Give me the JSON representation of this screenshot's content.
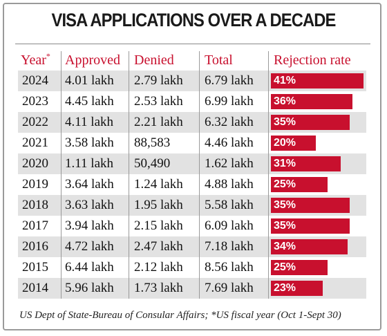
{
  "title": "VISA APPLICATIONS OVER A DECADE",
  "headers": {
    "year": "Year",
    "year_mark": "*",
    "approved": "Approved",
    "denied": "Denied",
    "total": "Total",
    "rate": "Rejection rate"
  },
  "source": "US Dept of State-Bureau of Consular Affairs; *US fiscal year (Oct 1-Sept 30)",
  "colors": {
    "accent": "#c8102e",
    "stripe": "#e2e2e2"
  },
  "chart_data": {
    "type": "table",
    "title": "VISA APPLICATIONS OVER A DECADE",
    "columns": [
      "Year*",
      "Approved",
      "Denied",
      "Total",
      "Rejection rate"
    ],
    "rows": [
      {
        "year": "2024",
        "approved": "4.01 lakh",
        "denied": "2.79 lakh",
        "total": "6.79 lakh",
        "rate": 41,
        "rate_label": "41%"
      },
      {
        "year": "2023",
        "approved": "4.45 lakh",
        "denied": "2.53 lakh",
        "total": "6.99 lakh",
        "rate": 36,
        "rate_label": "36%"
      },
      {
        "year": "2022",
        "approved": "4.11 lakh",
        "denied": "2.21 lakh",
        "total": "6.32 lakh",
        "rate": 35,
        "rate_label": "35%"
      },
      {
        "year": "2021",
        "approved": "3.58 lakh",
        "denied": "88,583",
        "total": "4.46 lakh",
        "rate": 20,
        "rate_label": "20%"
      },
      {
        "year": "2020",
        "approved": "1.11 lakh",
        "denied": "50,490",
        "total": "1.62 lakh",
        "rate": 31,
        "rate_label": "31%"
      },
      {
        "year": "2019",
        "approved": "3.64 lakh",
        "denied": "1.24 lakh",
        "total": "4.88 lakh",
        "rate": 25,
        "rate_label": "25%"
      },
      {
        "year": "2018",
        "approved": "3.63 lakh",
        "denied": "1.95 lakh",
        "total": "5.58 lakh",
        "rate": 35,
        "rate_label": "35%"
      },
      {
        "year": "2017",
        "approved": "3.94 lakh",
        "denied": "2.15 lakh",
        "total": "6.09 lakh",
        "rate": 35,
        "rate_label": "35%"
      },
      {
        "year": "2016",
        "approved": "4.72 lakh",
        "denied": "2.47 lakh",
        "total": "7.18 lakh",
        "rate": 34,
        "rate_label": "34%"
      },
      {
        "year": "2015",
        "approved": "6.44 lakh",
        "denied": "2.12 lakh",
        "total": "8.56 lakh",
        "rate": 25,
        "rate_label": "25%"
      },
      {
        "year": "2014",
        "approved": "5.96 lakh",
        "denied": "1.73 lakh",
        "total": "7.69 lakh",
        "rate": 23,
        "rate_label": "23%"
      }
    ]
  }
}
